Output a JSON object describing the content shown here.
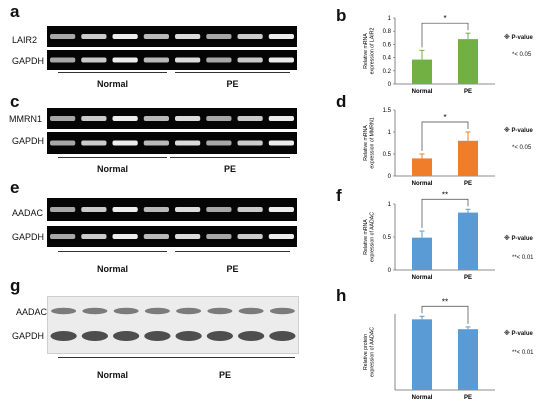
{
  "panels": {
    "a": {
      "letter": "a",
      "target": "LAIR2",
      "control": "GAPDH",
      "group1": "Normal",
      "group2": "PE"
    },
    "c": {
      "letter": "c",
      "target": "MMRN1",
      "control": "GAPDH",
      "group1": "Normal",
      "group2": "PE"
    },
    "e": {
      "letter": "e",
      "target": "AADAC",
      "control": "GAPDH",
      "group1": "Normal",
      "group2": "PE"
    },
    "g": {
      "letter": "g",
      "target": "AADAC",
      "control": "GAPDH",
      "group1": "Normal",
      "group2": "PE"
    }
  },
  "colors": {
    "green": "#72b043",
    "orange": "#ef7d29",
    "blue": "#5a9bd5",
    "gel_band": "#ffffff"
  },
  "chart_data": [
    {
      "letter": "b",
      "type": "bar",
      "categories": [
        "Normal",
        "PE"
      ],
      "values": [
        0.37,
        0.68
      ],
      "errors": [
        0.14,
        0.09
      ],
      "ylabel": "Relative mRNA expression of LAIR2",
      "ylim": [
        0,
        1
      ],
      "yticks": [
        0,
        0.2,
        0.4,
        0.6,
        0.8,
        1
      ],
      "significance": "*",
      "legend_title": "※ P-value",
      "legend_note": "*< 0.05",
      "color": "#72b043"
    },
    {
      "letter": "d",
      "type": "bar",
      "categories": [
        "Normal",
        "PE"
      ],
      "values": [
        0.4,
        0.8
      ],
      "errors": [
        0.1,
        0.2
      ],
      "ylabel": "Relative mRNA expression of MMRN1",
      "ylim": [
        0,
        1.5
      ],
      "yticks": [
        0,
        0.5,
        1,
        1.5
      ],
      "significance": "*",
      "legend_title": "※ P-value",
      "legend_note": "*< 0.05",
      "color": "#ef7d29"
    },
    {
      "letter": "f",
      "type": "bar",
      "categories": [
        "Normal",
        "PE"
      ],
      "values": [
        0.49,
        0.87
      ],
      "errors": [
        0.1,
        0.05
      ],
      "ylabel": "Relative mRNA expression of AADAC",
      "ylim": [
        0,
        1
      ],
      "yticks": [
        0,
        0.5,
        1
      ],
      "significance": "**",
      "legend_title": "※ P-value",
      "legend_note": "**< 0.01",
      "color": "#5a9bd5"
    },
    {
      "letter": "h",
      "type": "bar",
      "categories": [
        "Normal",
        "PE"
      ],
      "values": [
        0.93,
        0.8
      ],
      "errors": [
        0.04,
        0.03
      ],
      "ylabel": "Relative protein expression of AADAC",
      "ylim": [
        0,
        1
      ],
      "yticks": [],
      "significance": "**",
      "legend_title": "※ P-value",
      "legend_note": "**< 0.01",
      "color": "#5a9bd5"
    }
  ]
}
